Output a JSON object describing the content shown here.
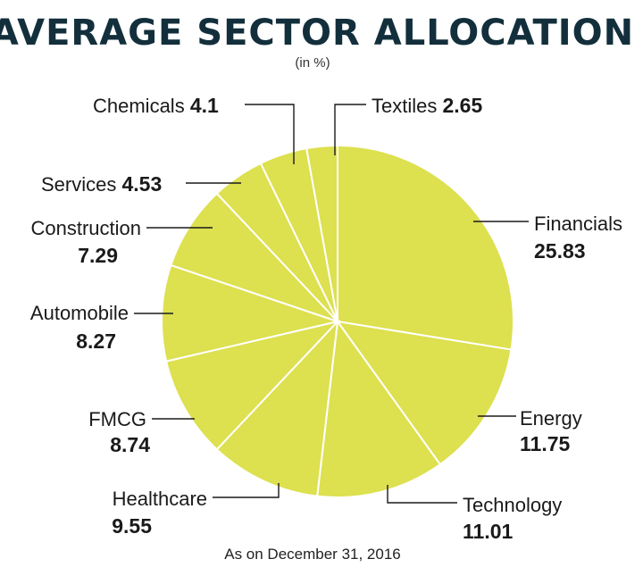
{
  "chart_data": {
    "type": "pie",
    "title": "AVERAGE SECTOR ALLOCATION",
    "subtitle": "(in %)",
    "footnote": "As on December 31, 2016",
    "slice_color": "#dde04f",
    "slices": [
      {
        "label": "Financials",
        "value_text": "25.83",
        "value": 25.83
      },
      {
        "label": "Energy",
        "value_text": "11.75",
        "value": 11.75
      },
      {
        "label": "Technology",
        "value_text": "11.01",
        "value": 11.01
      },
      {
        "label": "Healthcare",
        "value_text": "9.55",
        "value": 9.55
      },
      {
        "label": "FMCG",
        "value_text": "8.74",
        "value": 8.74
      },
      {
        "label": "Automobile",
        "value_text": "8.27",
        "value": 8.27
      },
      {
        "label": "Construction",
        "value_text": "7.29",
        "value": 7.29
      },
      {
        "label": "Services",
        "value_text": "4.53",
        "value": 4.53
      },
      {
        "label": "Chemicals",
        "value_text": "4.1",
        "value": 4.1
      },
      {
        "label": "Textiles",
        "value_text": "2.65",
        "value": 2.65
      }
    ]
  }
}
